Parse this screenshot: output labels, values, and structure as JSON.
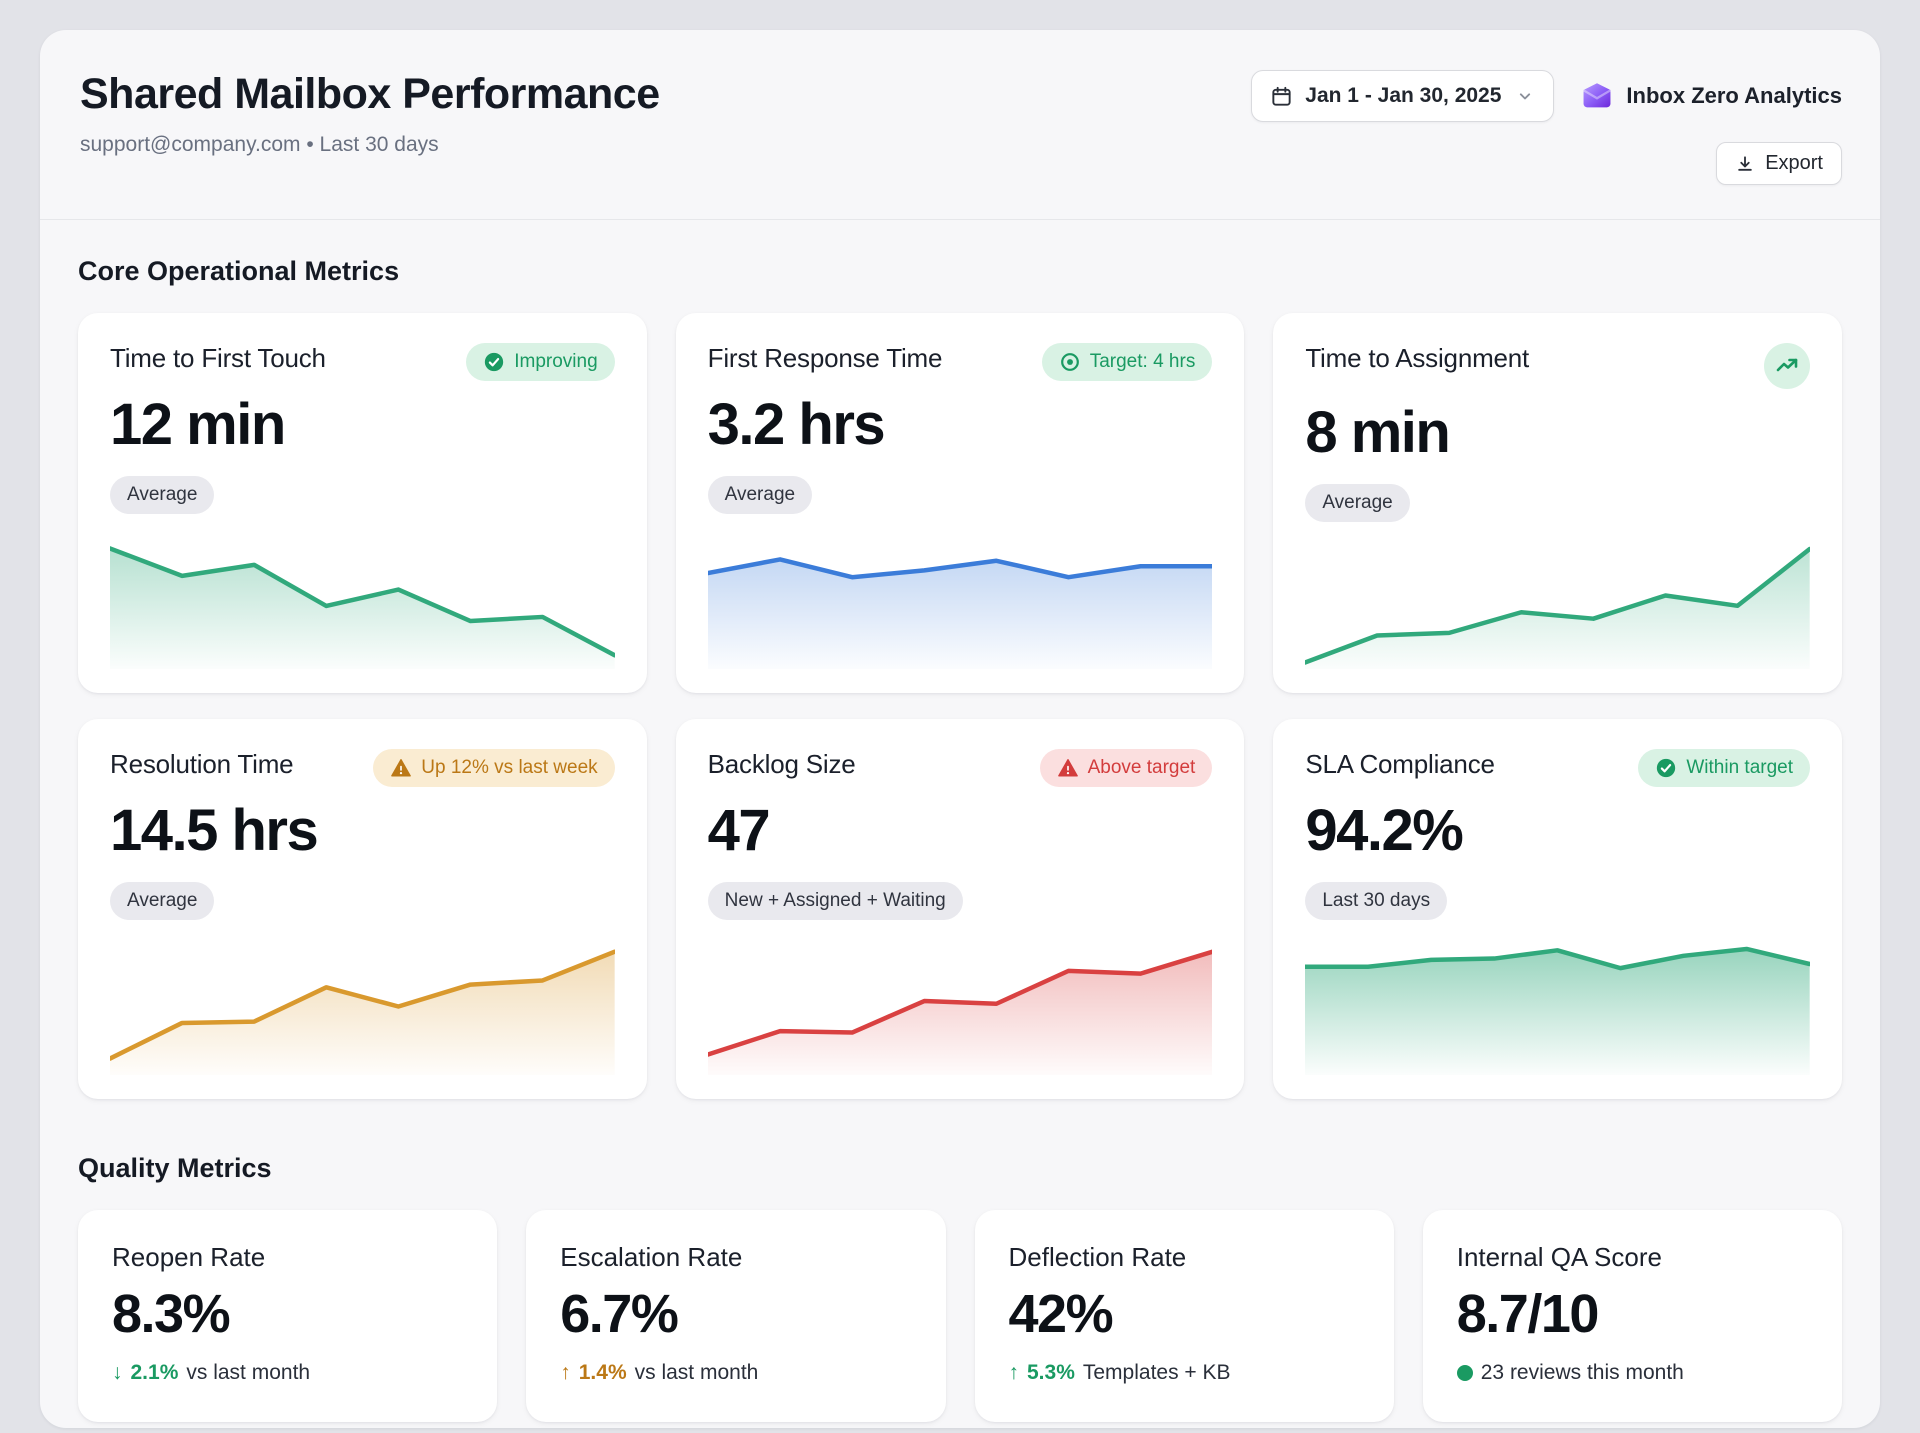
{
  "header": {
    "title": "Shared Mailbox Performance",
    "subtitle": "support@company.com • Last 30 days",
    "date_range": "Jan 1 - Jan 30, 2025",
    "brand": "Inbox Zero Analytics",
    "export_label": "Export"
  },
  "sections": {
    "core": "Core Operational Metrics",
    "quality": "Quality Metrics"
  },
  "colors": {
    "green": "#31a97c",
    "blue": "#3b7cd9",
    "amber": "#d9992e",
    "red": "#d94141",
    "badge_green_text": "#1a9a62",
    "badge_amber_text": "#bb7816",
    "badge_red_text": "#d33c3c",
    "brand_purple": "#8b5cf6"
  },
  "cards": [
    {
      "title": "Time to First Touch",
      "value": "12 min",
      "chip": "Average",
      "badge": {
        "label": "Improving",
        "type": "success"
      }
    },
    {
      "title": "First Response Time",
      "value": "3.2 hrs",
      "chip": "Average",
      "badge": {
        "label": "Target: 4 hrs",
        "type": "target"
      }
    },
    {
      "title": "Time to Assignment",
      "value": "8 min",
      "chip": "Average",
      "badge": {
        "label": "",
        "type": "trend-up-icon"
      }
    },
    {
      "title": "Resolution Time",
      "value": "14.5 hrs",
      "chip": "Average",
      "badge": {
        "label": "Up 12% vs last week",
        "type": "warning"
      }
    },
    {
      "title": "Backlog Size",
      "value": "47",
      "chip": "New + Assigned + Waiting",
      "badge": {
        "label": "Above target",
        "type": "danger"
      }
    },
    {
      "title": "SLA Compliance",
      "value": "94.2%",
      "chip": "Last 30 days",
      "badge": {
        "label": "Within target",
        "type": "success"
      }
    }
  ],
  "quality_cards": [
    {
      "title": "Reopen Rate",
      "value": "8.3%",
      "delta": {
        "arrow": "↓",
        "pct": "2.1%",
        "rest": "vs last month",
        "tone": "green"
      }
    },
    {
      "title": "Escalation Rate",
      "value": "6.7%",
      "delta": {
        "arrow": "↑",
        "pct": "1.4%",
        "rest": "vs last month",
        "tone": "amber"
      }
    },
    {
      "title": "Deflection Rate",
      "value": "42%",
      "delta": {
        "arrow": "↑",
        "pct": "5.3%",
        "rest": "Templates + KB",
        "tone": "green"
      }
    },
    {
      "title": "Internal QA Score",
      "value": "8.7/10",
      "delta": {
        "arrow": "",
        "pct": "",
        "rest": "23 reviews this month",
        "tone": "green"
      }
    }
  ],
  "chart_data": [
    {
      "type": "area",
      "metric": "Time to First Touch",
      "trend": "decreasing",
      "color": "#31a97c",
      "fill_opacity": 0.35,
      "x": "last 30 days (8 buckets)",
      "y": "relative level 0-100",
      "values": [
        88,
        68,
        76,
        46,
        58,
        35,
        38,
        10
      ]
    },
    {
      "type": "area",
      "metric": "First Response Time",
      "trend": "flat",
      "color": "#3b7cd9",
      "fill_opacity": 0.3,
      "x": "last 30 days (8 buckets)",
      "y": "relative level 0-100",
      "values": [
        70,
        80,
        67,
        72,
        79,
        67,
        75,
        75
      ]
    },
    {
      "type": "area",
      "metric": "Time to Assignment",
      "trend": "increasing",
      "color": "#31a97c",
      "fill_opacity": 0.32,
      "x": "last 30 days (8 buckets)",
      "y": "relative level 0-100",
      "values": [
        5,
        26,
        28,
        44,
        39,
        57,
        49,
        93
      ]
    },
    {
      "type": "area",
      "metric": "Resolution Time",
      "trend": "increasing",
      "color": "#d9992e",
      "fill_opacity": 0.35,
      "x": "last 30 days (8 buckets)",
      "y": "relative level 0-100",
      "values": [
        12,
        38,
        39,
        64,
        50,
        66,
        69,
        90
      ]
    },
    {
      "type": "area",
      "metric": "Backlog Size",
      "trend": "increasing",
      "color": "#d94141",
      "fill_opacity": 0.35,
      "x": "last 30 days (8 buckets)",
      "y": "relative level 0-100",
      "values": [
        15,
        32,
        31,
        54,
        52,
        76,
        74,
        90
      ]
    },
    {
      "type": "area",
      "metric": "SLA Compliance",
      "trend": "flat-high",
      "color": "#31a97c",
      "fill_opacity": 0.5,
      "x": "last 30 days (9 buckets)",
      "y": "relative level 0-100",
      "values": [
        79,
        79,
        84,
        85,
        91,
        78,
        87,
        92,
        81
      ]
    }
  ]
}
